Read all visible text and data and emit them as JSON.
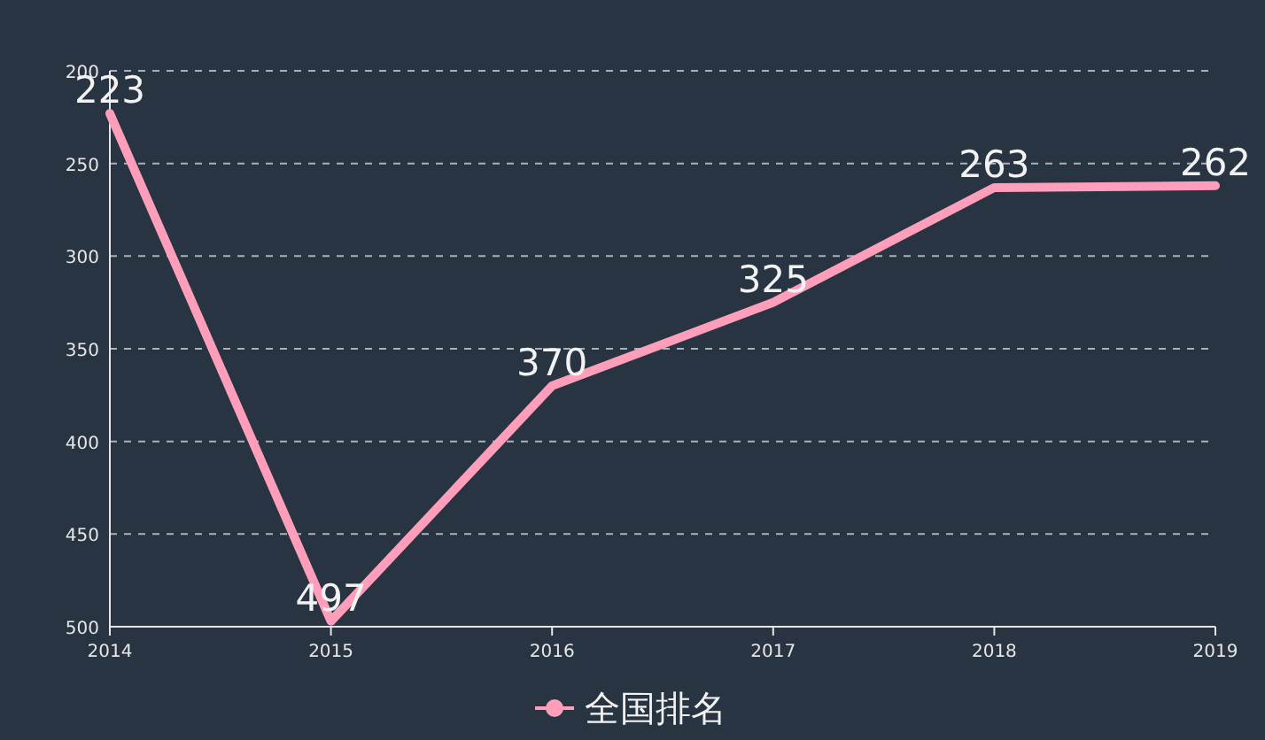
{
  "chart_data": {
    "type": "line",
    "x": [
      2014,
      2015,
      2016,
      2017,
      2018,
      2019
    ],
    "xlim": [
      2014,
      2019
    ],
    "xticks": [
      2014,
      2015,
      2016,
      2017,
      2018,
      2019
    ],
    "ylim": [
      500,
      200
    ],
    "yticks": [
      200,
      250,
      300,
      350,
      400,
      450,
      500
    ],
    "grid": "y",
    "legend": "bottom",
    "marker": "none",
    "data_labels": true,
    "series": [
      {
        "name": "全国排名",
        "color": "#ff9ebb",
        "values": [
          223,
          497,
          370,
          325,
          263,
          262
        ]
      }
    ]
  }
}
